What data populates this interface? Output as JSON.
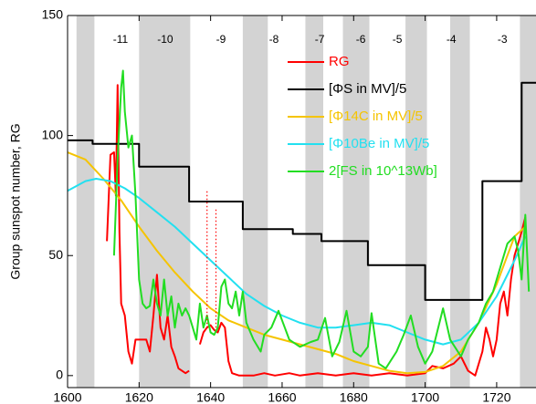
{
  "chart_data": {
    "type": "line",
    "y_label": "Group sunspot number, RG",
    "xlim": [
      1600,
      1731
    ],
    "ylim": [
      -5,
      150
    ],
    "xticks": [
      1600,
      1620,
      1640,
      1660,
      1680,
      1700,
      1720
    ],
    "yticks": [
      0,
      50,
      100,
      150
    ],
    "grid": false,
    "legend_position": "upper center",
    "shaded_regions": [
      [
        1602.5,
        1607.5
      ],
      [
        1620,
        1634.3
      ],
      [
        1649,
        1656
      ],
      [
        1666.5,
        1671.5
      ],
      [
        1677,
        1684.4
      ],
      [
        1694.5,
        1700.5
      ],
      [
        1707,
        1712.5
      ],
      [
        1726.5,
        1731
      ]
    ],
    "shade_color": "#d3d3d3",
    "cycle_labels": [
      {
        "x": 1614.8,
        "label": "-11"
      },
      {
        "x": 1627.3,
        "label": "-10"
      },
      {
        "x": 1642.9,
        "label": "-9"
      },
      {
        "x": 1657.7,
        "label": "-8"
      },
      {
        "x": 1670.5,
        "label": "-7"
      },
      {
        "x": 1682,
        "label": "-6"
      },
      {
        "x": 1692.2,
        "label": "-5"
      },
      {
        "x": 1707.3,
        "label": "-4"
      },
      {
        "x": 1721.6,
        "label": "-3"
      }
    ],
    "dotted_segments": [
      {
        "x": 1639,
        "y": [
          20,
          77
        ],
        "color": "#ff0000"
      },
      {
        "x": 1641.5,
        "y": [
          20,
          70
        ],
        "color": "#ff0000"
      }
    ],
    "series": [
      {
        "name": "RG",
        "color": "#ff0000",
        "x": [
          1611,
          1612,
          1613,
          1613.5,
          1614,
          1614.5,
          1615,
          1616,
          1617,
          1618,
          1619,
          1620,
          1622,
          1623,
          1624,
          1625,
          1626,
          1627,
          1628,
          1629,
          1630,
          1631,
          1632,
          1633,
          1634,
          1635.5,
          1637,
          1638,
          1639,
          1640,
          1641,
          1642,
          1643,
          1644,
          1645,
          1646,
          1648,
          1652,
          1655,
          1658,
          1662,
          1665,
          1670,
          1675,
          1680,
          1685,
          1690,
          1695,
          1700,
          1702,
          1705,
          1708,
          1710,
          1712,
          1714,
          1716,
          1717,
          1718,
          1719,
          1720,
          1721,
          1722,
          1723,
          1724,
          1725,
          1726,
          1727,
          1728
        ],
        "values": [
          56,
          92,
          93,
          75,
          121,
          60,
          30,
          25,
          10,
          5,
          15,
          15,
          15,
          10,
          25,
          42,
          20,
          15,
          25,
          12,
          8,
          3,
          2,
          1,
          2,
          null,
          13,
          18,
          20,
          21,
          19,
          18,
          22,
          20,
          6,
          1,
          0,
          0,
          1,
          0,
          1,
          0,
          1,
          0,
          1,
          0,
          1,
          0,
          1,
          4,
          3,
          5,
          8,
          2,
          0,
          10,
          20,
          15,
          8,
          15,
          30,
          35,
          25,
          40,
          50,
          55,
          60,
          66
        ]
      },
      {
        "name": "[ΦS in MV]/5",
        "color": "#000000",
        "x": [
          1600,
          1607,
          1607,
          1620,
          1620,
          1634,
          1634,
          1649,
          1649,
          1663,
          1663,
          1671,
          1671,
          1684,
          1684,
          1700,
          1700,
          1716,
          1716,
          1727,
          1727,
          1731
        ],
        "values": [
          98,
          98,
          96.5,
          96.5,
          87,
          87,
          72.5,
          72.5,
          61,
          61,
          59,
          59,
          56,
          56,
          46,
          46,
          31.5,
          31.5,
          81,
          81,
          122,
          122
        ]
      },
      {
        "name": "[Φ14C in MV]/5",
        "color": "#f5c400",
        "x": [
          1600,
          1605,
          1610,
          1615,
          1620,
          1625,
          1630,
          1635,
          1640,
          1645,
          1650,
          1655,
          1660,
          1665,
          1670,
          1675,
          1680,
          1685,
          1690,
          1695,
          1700,
          1705,
          1710,
          1715,
          1720,
          1725,
          1728
        ],
        "values": [
          93,
          90,
          82,
          73,
          62,
          52,
          43,
          35,
          28,
          23,
          20,
          17,
          15,
          13,
          11,
          9,
          6,
          4,
          2,
          1,
          1.5,
          4,
          10,
          22,
          38,
          58,
          62
        ]
      },
      {
        "name": "[Φ10Be in MV]/5",
        "color": "#22e0f0",
        "x": [
          1600,
          1605,
          1608,
          1612,
          1616,
          1620,
          1625,
          1630,
          1635,
          1640,
          1645,
          1650,
          1655,
          1660,
          1665,
          1670,
          1675,
          1680,
          1685,
          1690,
          1695,
          1700,
          1705,
          1710,
          1715,
          1720,
          1725,
          1728
        ],
        "values": [
          77,
          81,
          82,
          81,
          78,
          74,
          68,
          62,
          55,
          48,
          41,
          34,
          29,
          25,
          22,
          20,
          20,
          21,
          22,
          21,
          18,
          15,
          13,
          15,
          22,
          33,
          48,
          58
        ]
      },
      {
        "name": "2[FS in 10^13Wb]",
        "color": "#22dd22",
        "x": [
          1613,
          1614,
          1615,
          1615.5,
          1616,
          1617,
          1618,
          1619,
          1620,
          1621,
          1622,
          1623,
          1624,
          1625,
          1626,
          1627,
          1628,
          1629,
          1630,
          1631,
          1632,
          1633,
          1634,
          1635,
          1636,
          1637,
          1638,
          1639,
          1640,
          1641,
          1642,
          1643,
          1644,
          1645,
          1646,
          1647,
          1648,
          1649,
          1650,
          1652,
          1654,
          1655,
          1657,
          1659,
          1662,
          1665,
          1668,
          1670,
          1672,
          1674,
          1676,
          1678,
          1680,
          1682,
          1684,
          1685,
          1687,
          1689,
          1692,
          1694,
          1696,
          1698,
          1700,
          1702,
          1705,
          1707,
          1710,
          1712,
          1715,
          1717,
          1719,
          1721,
          1723,
          1725,
          1726,
          1727,
          1728,
          1729
        ],
        "values": [
          50,
          90,
          120,
          127,
          110,
          95,
          100,
          75,
          40,
          30,
          28,
          29,
          40,
          30,
          25,
          40,
          25,
          33,
          20,
          30,
          25,
          28,
          25,
          20,
          15,
          30,
          20,
          25,
          18,
          17,
          20,
          37,
          40,
          30,
          28,
          35,
          25,
          35,
          22,
          15,
          10,
          17,
          20,
          27,
          15,
          12,
          14,
          15,
          24,
          8,
          14,
          27,
          10,
          8,
          12,
          26,
          5,
          3,
          10,
          17,
          25,
          12,
          5,
          10,
          28,
          15,
          8,
          15,
          22,
          30,
          35,
          45,
          55,
          58,
          52,
          40,
          67,
          35
        ]
      }
    ]
  }
}
